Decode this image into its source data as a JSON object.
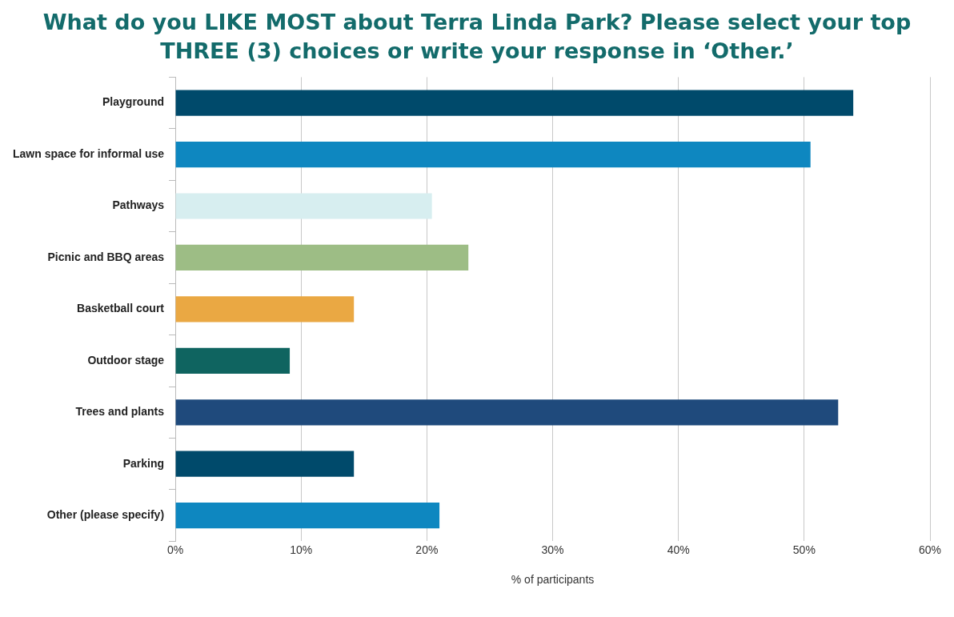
{
  "chart_data": {
    "type": "bar",
    "orientation": "horizontal",
    "title": "What do you LIKE MOST about Terra Linda Park? Please select your top THREE (3) choices or write your response in ‘Other.’",
    "xlabel": "% of participants",
    "categories": [
      "Playground",
      "Lawn space for informal use",
      "Pathways",
      "Picnic and BBQ areas",
      "Basketball court",
      "Outdoor stage",
      "Trees and plants",
      "Parking",
      "Other (please specify)"
    ],
    "values": [
      53.9,
      50.5,
      20.4,
      23.3,
      14.2,
      9.1,
      52.7,
      14.2,
      21.0
    ],
    "colors": [
      "#004a6b",
      "#0e87c0",
      "#d7eef0",
      "#9dbd85",
      "#eaa843",
      "#0f6460",
      "#1f4a7c",
      "#004a6b",
      "#0e87c0"
    ],
    "xlim": [
      0,
      60
    ],
    "xticks": [
      {
        "value": 0,
        "label": "0%"
      },
      {
        "value": 10,
        "label": "10%"
      },
      {
        "value": 20,
        "label": "20%"
      },
      {
        "value": 30,
        "label": "30%"
      },
      {
        "value": 40,
        "label": "40%"
      },
      {
        "value": 50,
        "label": "50%"
      },
      {
        "value": 60,
        "label": "60%"
      }
    ],
    "grid": "x",
    "legend": false
  }
}
